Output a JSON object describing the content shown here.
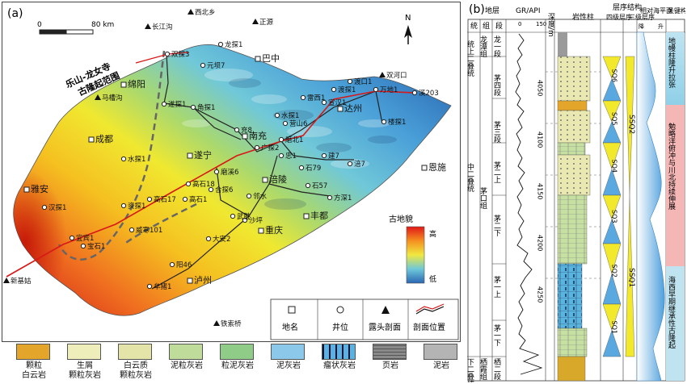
{
  "panel_a": {
    "label": "(a)",
    "scale": {
      "zero": "0",
      "end": "80 km"
    },
    "north": "N",
    "paleo_legend": {
      "title": "古地貌",
      "high": "高",
      "low": "低"
    },
    "uplift_label_1": "乐山-龙女寺",
    "uplift_label_2": "古隆起范围",
    "places": [
      {
        "name": "西北乡",
        "type": "outcrop"
      },
      {
        "name": "正源",
        "type": "outcrop"
      },
      {
        "name": "长江沟",
        "type": "outcrop"
      },
      {
        "name": "双河口",
        "type": "outcrop"
      },
      {
        "name": "龙探1",
        "type": "well"
      },
      {
        "name": "双探3",
        "type": "well"
      },
      {
        "name": "元坝7",
        "type": "well"
      },
      {
        "name": "巴中",
        "type": "city"
      },
      {
        "name": "绵阳",
        "type": "city"
      },
      {
        "name": "马槽沟",
        "type": "outcrop"
      },
      {
        "name": "遂探1",
        "type": "well"
      },
      {
        "name": "角探1",
        "type": "well"
      },
      {
        "name": "达州",
        "type": "city"
      },
      {
        "name": "雷西1",
        "type": "well"
      },
      {
        "name": "宣汉1",
        "type": "well"
      },
      {
        "name": "渡探1",
        "type": "well"
      },
      {
        "name": "渡口1",
        "type": "well"
      },
      {
        "name": "万地1",
        "type": "well"
      },
      {
        "name": "溪203",
        "type": "well"
      },
      {
        "name": "楼探1",
        "type": "well"
      },
      {
        "name": "水探1",
        "type": "well"
      },
      {
        "name": "营山6",
        "type": "well"
      },
      {
        "name": "充8",
        "type": "well"
      },
      {
        "name": "南充",
        "type": "city"
      },
      {
        "name": "广探2",
        "type": "well"
      },
      {
        "name": "磨北1",
        "type": "well"
      },
      {
        "name": "忠1",
        "type": "well"
      },
      {
        "name": "成都",
        "type": "city"
      },
      {
        "name": "水探1",
        "type": "well"
      },
      {
        "name": "遂宁",
        "type": "city"
      },
      {
        "name": "磨溪6",
        "type": "well"
      },
      {
        "name": "涪陵",
        "type": "city"
      },
      {
        "name": "石79",
        "type": "well"
      },
      {
        "name": "建7",
        "type": "well"
      },
      {
        "name": "涪7",
        "type": "well"
      },
      {
        "name": "恩施",
        "type": "city"
      },
      {
        "name": "高石18",
        "type": "well"
      },
      {
        "name": "合探6",
        "type": "well"
      },
      {
        "name": "邻水",
        "type": "well"
      },
      {
        "name": "重庆",
        "type": "city"
      },
      {
        "name": "石57",
        "type": "well"
      },
      {
        "name": "方深1",
        "type": "well"
      },
      {
        "name": "雅安",
        "type": "city"
      },
      {
        "name": "汉探1",
        "type": "well"
      },
      {
        "name": "高石17",
        "type": "well"
      },
      {
        "name": "资探1",
        "type": "well"
      },
      {
        "name": "高石1",
        "type": "well"
      },
      {
        "name": "武胜",
        "type": "well"
      },
      {
        "name": "丰都",
        "type": "city"
      },
      {
        "name": "威寒101",
        "type": "well"
      },
      {
        "name": "大安2",
        "type": "well"
      },
      {
        "name": "沙坪",
        "type": "well"
      },
      {
        "name": "宜宾1",
        "type": "well"
      },
      {
        "name": "宝石1",
        "type": "well"
      },
      {
        "name": "阳46",
        "type": "well"
      },
      {
        "name": "泸州",
        "type": "city"
      },
      {
        "name": "新基姑",
        "type": "outcrop"
      },
      {
        "name": "牟猪1",
        "type": "well"
      },
      {
        "name": "铁索桥",
        "type": "outcrop"
      }
    ],
    "legend": {
      "city": "地名",
      "well": "井位",
      "outcrop": "露头剖面",
      "profile": "剖面位置"
    }
  },
  "lithology_legend": [
    {
      "name": "颗粒\n白云岩",
      "key": "granular-dolomite"
    },
    {
      "name": "生屑\n颗粒灰岩",
      "key": "bioclastic-grainstone"
    },
    {
      "name": "白云质\n颗粒灰岩",
      "key": "dolomitic-grainstone"
    },
    {
      "name": "泥粒灰岩",
      "key": "packstone"
    },
    {
      "name": "粒泥灰岩",
      "key": "wackestone"
    },
    {
      "name": "泥灰岩",
      "key": "marlstone"
    },
    {
      "name": "瘤状灰岩",
      "key": "nodular-limestone"
    },
    {
      "name": "页岩",
      "key": "shale"
    },
    {
      "name": "泥岩",
      "key": "mudstone"
    }
  ],
  "panel_b": {
    "label": "(b)",
    "headers": {
      "strat": "地层",
      "system": "统",
      "formation": "组",
      "member": "段",
      "gr": "GR/API",
      "gr_min": "0",
      "gr_max": "150",
      "depth": "深度/m",
      "lith": "岩性柱",
      "sequence": "层序结构",
      "fourth": "四级层序",
      "third": "三级层序",
      "sealevel": "相对海平面",
      "fall": "降",
      "rise": "升",
      "tectonic": "关键构造阶段"
    },
    "depth_ticks": [
      "4050",
      "4100",
      "4150",
      "4200",
      "4250"
    ],
    "systems": [
      "统上二叠统",
      "中二叠统",
      "下二叠统"
    ],
    "formations": [
      "龙潭组",
      "茅口组",
      "栖霞组"
    ],
    "members": [
      "龙一段",
      "茅四段",
      "茅三段",
      "茅二上",
      "茅二下",
      "茅一上",
      "茅一下",
      "栖二段"
    ],
    "fourth_order": [
      "SQ6",
      "SQ5",
      "SQ4",
      "SQ3",
      "SQ2",
      "SQ1"
    ],
    "third_order": [
      "SSQ2",
      "SSQ1"
    ],
    "tectonic_stages": [
      "地幔柱隆升拉张",
      "勉略洋俯冲与川北持续伸展",
      "海西早期继承性古隆起"
    ]
  }
}
